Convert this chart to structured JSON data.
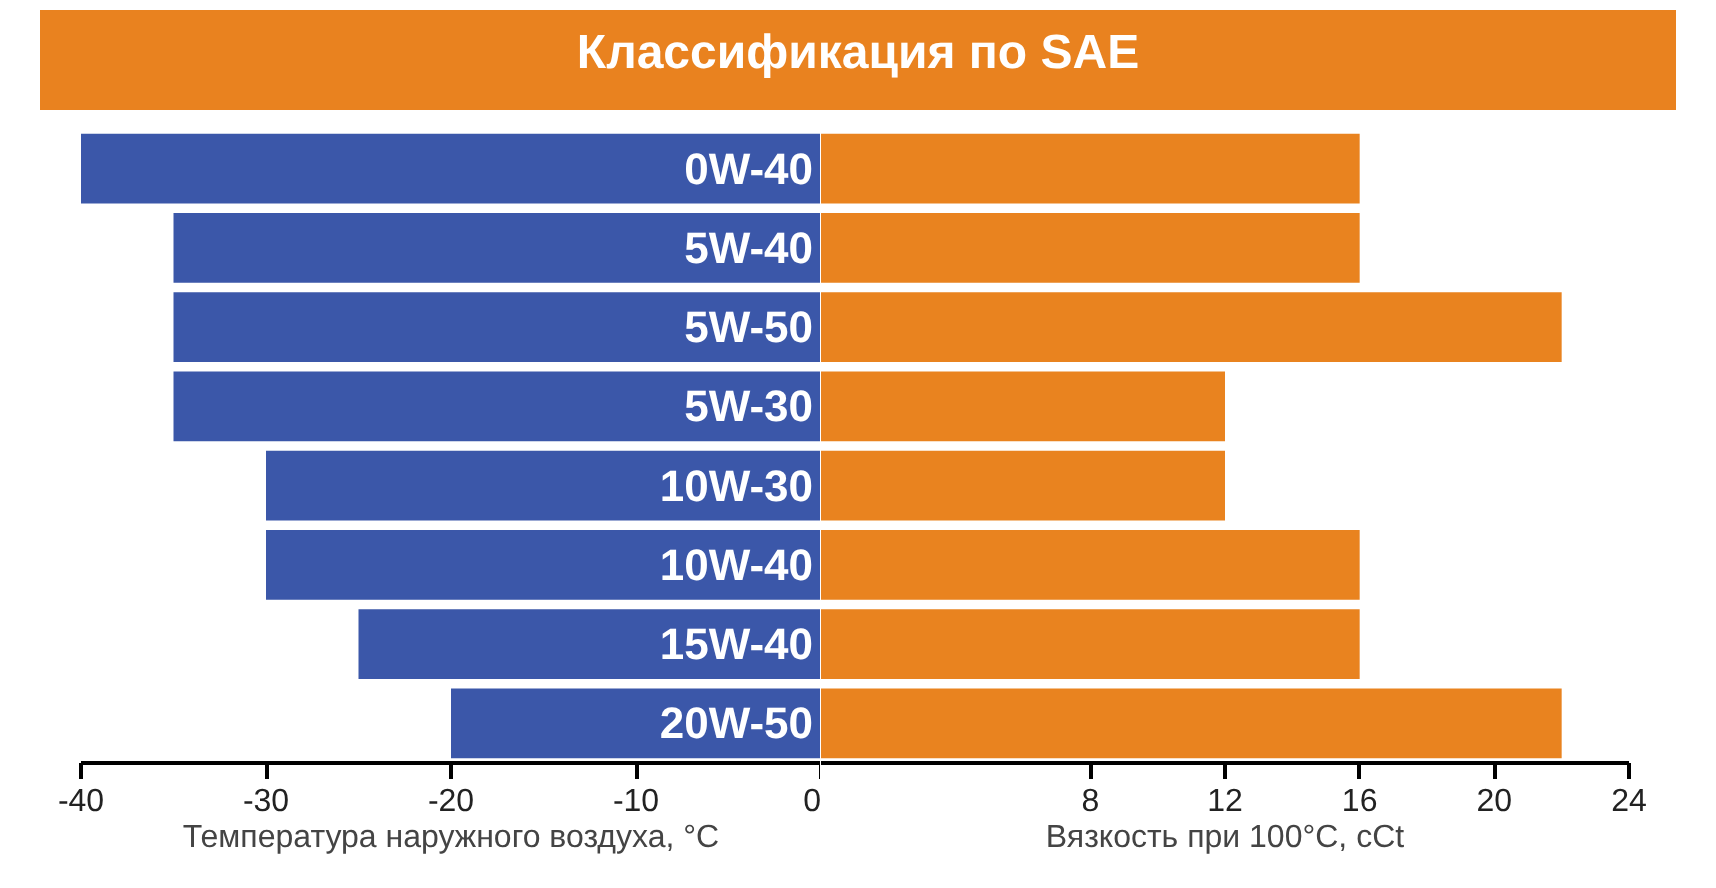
{
  "chart_data": [
    {
      "type": "bar",
      "orientation": "horizontal",
      "title": "Классификация по SAE",
      "categories": [
        "0W-40",
        "5W-40",
        "5W-50",
        "5W-30",
        "10W-30",
        "10W-40",
        "15W-40",
        "20W-50"
      ],
      "values": [
        -40,
        -35,
        -35,
        -35,
        -30,
        -30,
        -25,
        -20
      ],
      "color": "#3b57a9",
      "xlim": [
        -40,
        0
      ],
      "xticks": [
        -40,
        -30,
        -20,
        -10,
        0
      ],
      "xlabel": "Температура наружного воздуха, °C",
      "grid": false
    },
    {
      "type": "bar",
      "orientation": "horizontal",
      "categories": [
        null,
        null,
        null,
        null,
        null,
        null,
        null,
        null
      ],
      "values": [
        16,
        16,
        22,
        12,
        12,
        16,
        16,
        22
      ],
      "color": "#e9831f",
      "xlim": [
        0,
        24
      ],
      "xticks": [
        8,
        12,
        16,
        20,
        24
      ],
      "xlabel": "Вязкость при 100°C, cCt",
      "grid": false,
      "tick_labels": "x"
    }
  ]
}
